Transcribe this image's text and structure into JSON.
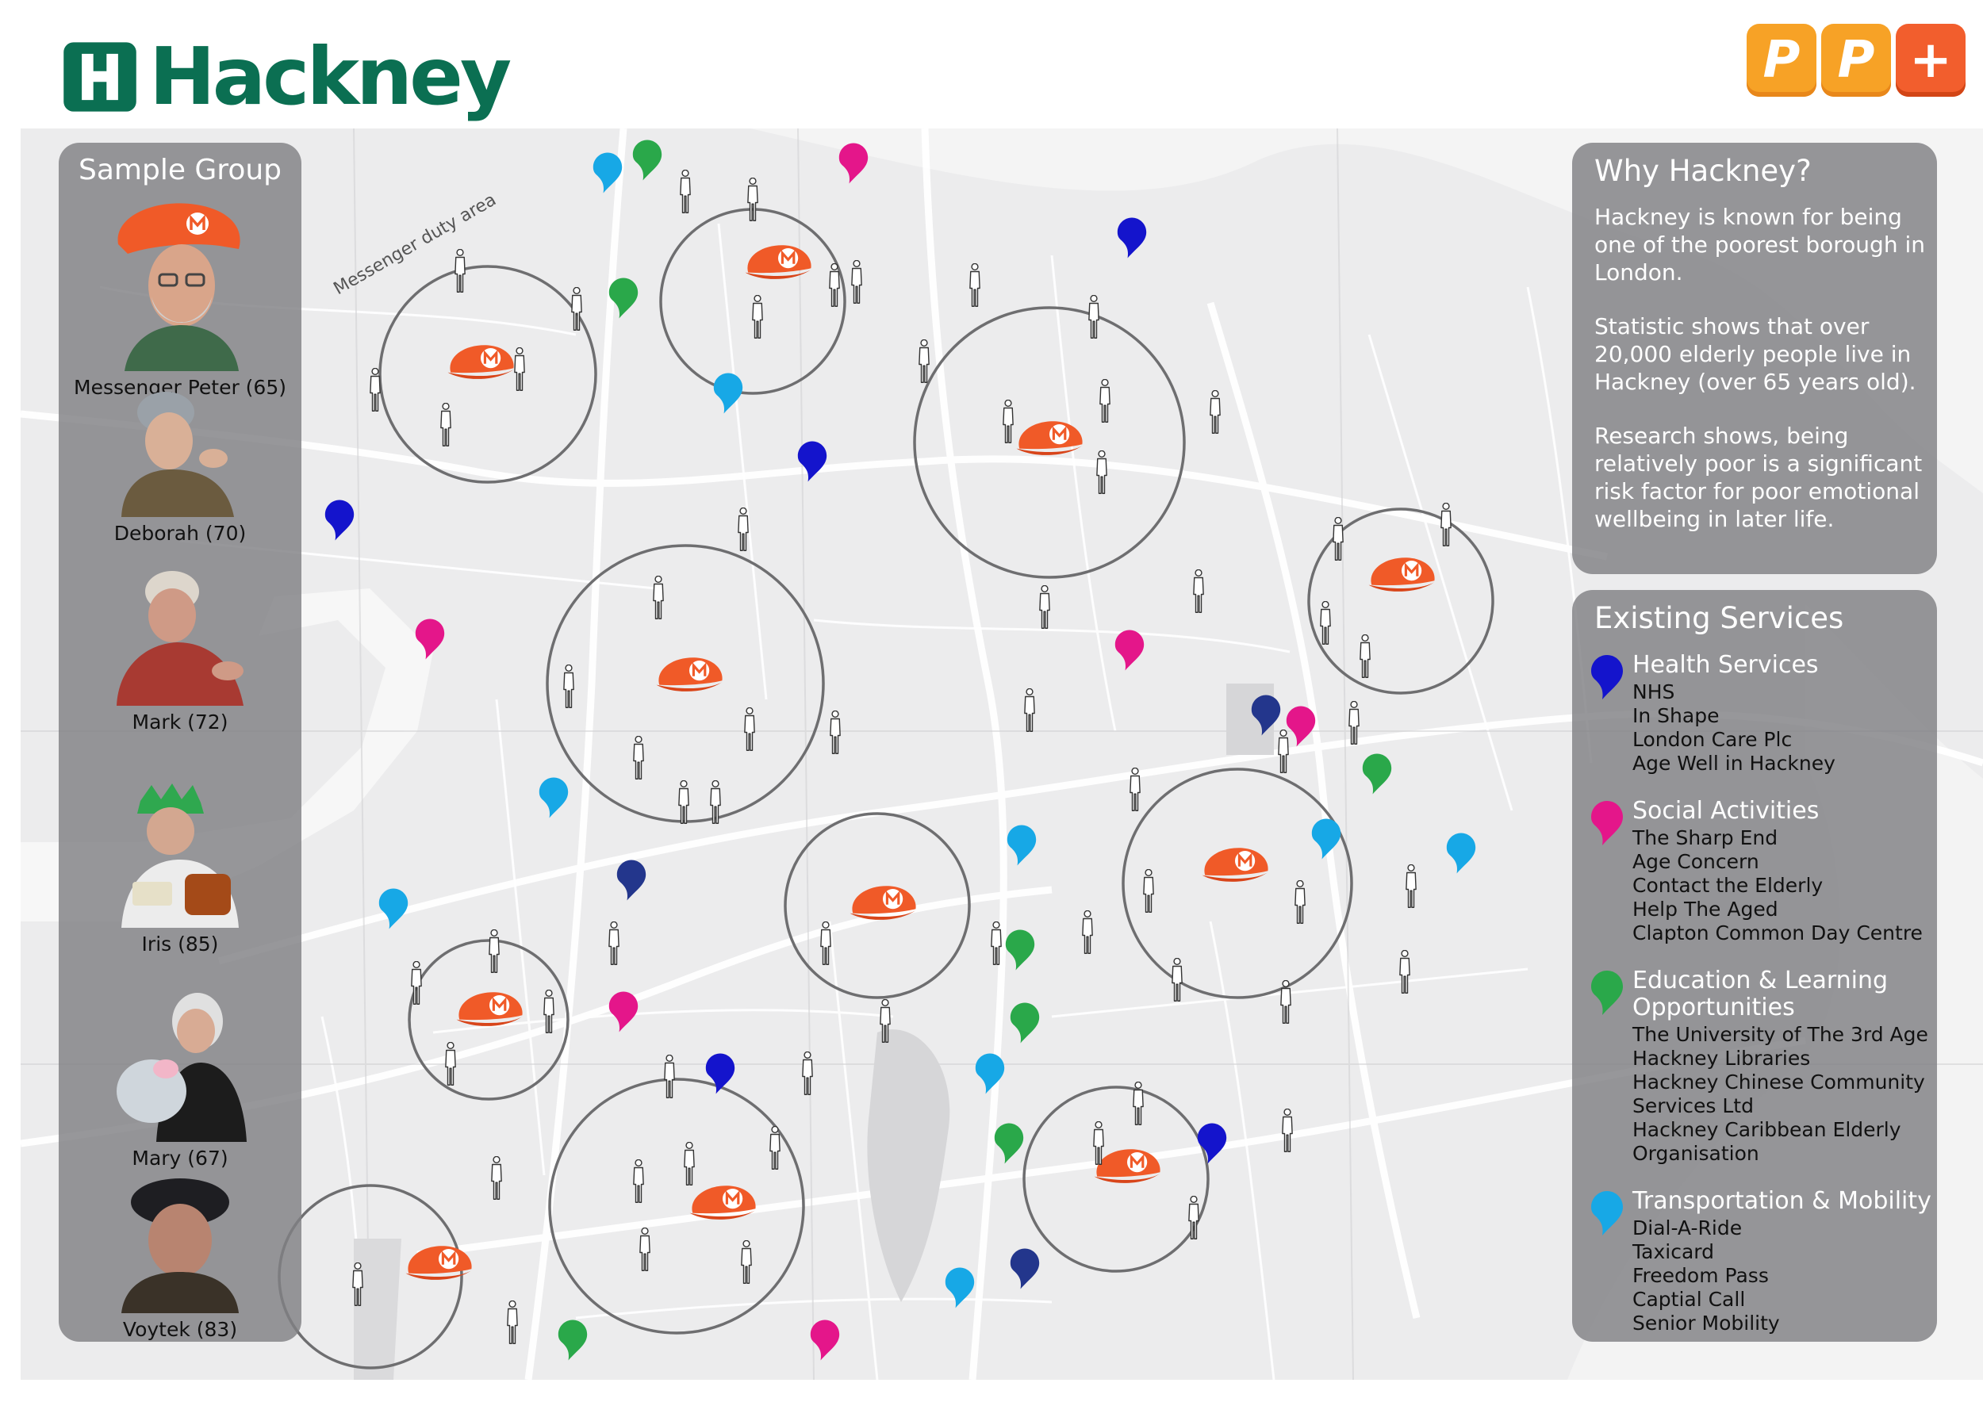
{
  "header": {
    "borough_logo": "Hackney",
    "partner_logo": [
      "P",
      "P",
      "+"
    ]
  },
  "colors": {
    "hackney_green": "#0b6f52",
    "messenger_cap": "#f05a28",
    "health_services": "#1414cc",
    "social_activities": "#e4168a",
    "education_learning": "#2aa84a",
    "transportation_mobility": "#17a8e6",
    "extra_navy_pin": "#23368c",
    "partner_orange": "#f7a226"
  },
  "map": {
    "area_label": "Messenger duty area",
    "cap_emblem": "M",
    "marker_legend": [
      "messenger-cap",
      "elderly-person-icon",
      "service-pin"
    ]
  },
  "sample_group": {
    "title": "Sample Group",
    "members": [
      {
        "name": "Messenger Peter (65)"
      },
      {
        "name": "Deborah (70)"
      },
      {
        "name": "Mark (72)"
      },
      {
        "name": "Iris (85)"
      },
      {
        "name": "Mary (67)"
      },
      {
        "name": "Voytek (83)"
      }
    ]
  },
  "why_hackney": {
    "title": "Why Hackney?",
    "paragraphs": [
      "Hackney is known for being one of the poorest borough in London.",
      "Statistic shows that over 20,000 elderly people live in Hackney (over 65 years old).",
      "Research shows, being relatively poor is a significant risk factor for poor emotional wellbeing in later life."
    ]
  },
  "existing_services": {
    "title": "Existing Services",
    "categories": [
      {
        "title": "Health Services",
        "color": "#1414cc",
        "items": [
          "NHS",
          "In Shape",
          "London Care Plc",
          "Age Well in Hackney"
        ]
      },
      {
        "title": "Social Activities",
        "color": "#e4168a",
        "items": [
          "The Sharp End",
          "Age Concern",
          "Contact the Elderly",
          "Help The Aged",
          "Clapton Common Day Centre"
        ]
      },
      {
        "title": "Education & Learning Opportunities",
        "color": "#2aa84a",
        "items": [
          "The University of The 3rd Age",
          "Hackney Libraries",
          "Hackney Chinese Community Services Ltd",
          "Hackney Caribbean Elderly Organisation"
        ]
      },
      {
        "title": "Transportation & Mobility",
        "color": "#17a8e6",
        "items": [
          "Dial-A-Ride",
          "Taxicard",
          "Freedom Pass",
          "Captial Call",
          "Senior Mobility"
        ]
      }
    ]
  }
}
